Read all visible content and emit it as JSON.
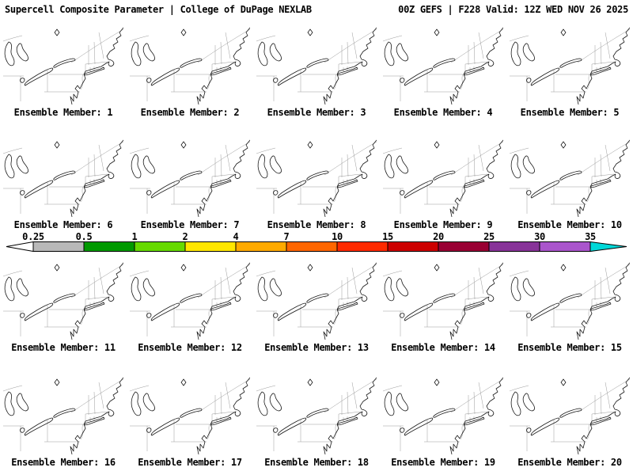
{
  "header": {
    "title_left": "Supercell Composite Parameter | College of DuPage NEXLAB",
    "title_right": "00Z GEFS | F228 Valid: 12Z WED NOV 26 2025"
  },
  "panels": [
    {
      "label": "Ensemble Member: 1"
    },
    {
      "label": "Ensemble Member: 2"
    },
    {
      "label": "Ensemble Member: 3"
    },
    {
      "label": "Ensemble Member: 4"
    },
    {
      "label": "Ensemble Member: 5"
    },
    {
      "label": "Ensemble Member: 6"
    },
    {
      "label": "Ensemble Member: 7"
    },
    {
      "label": "Ensemble Member: 8"
    },
    {
      "label": "Ensemble Member: 9"
    },
    {
      "label": "Ensemble Member: 10"
    },
    {
      "label": "Ensemble Member: 11"
    },
    {
      "label": "Ensemble Member: 12"
    },
    {
      "label": "Ensemble Member: 13"
    },
    {
      "label": "Ensemble Member: 14"
    },
    {
      "label": "Ensemble Member: 15"
    },
    {
      "label": "Ensemble Member: 16"
    },
    {
      "label": "Ensemble Member: 17"
    },
    {
      "label": "Ensemble Member: 18"
    },
    {
      "label": "Ensemble Member: 19"
    },
    {
      "label": "Ensemble Member: 20"
    }
  ],
  "colorbar": {
    "ticks": [
      "0.25",
      "0.5",
      "1",
      "2",
      "4",
      "7",
      "10",
      "15",
      "20",
      "25",
      "30",
      "35"
    ],
    "segment_colors": [
      "#b8b8b8",
      "#009900",
      "#66d900",
      "#ffe600",
      "#ffaa00",
      "#ff6600",
      "#ff2a00",
      "#cc0000",
      "#990033",
      "#883399",
      "#aa55cc"
    ],
    "left_arrow_color": "#ffffff",
    "right_arrow_color": "#00d8d8",
    "outline_color": "#000000"
  },
  "map": {
    "marker_icon": "diamond",
    "coast_color": "#1a1a1a",
    "state_border_color": "#9a9a9a"
  }
}
